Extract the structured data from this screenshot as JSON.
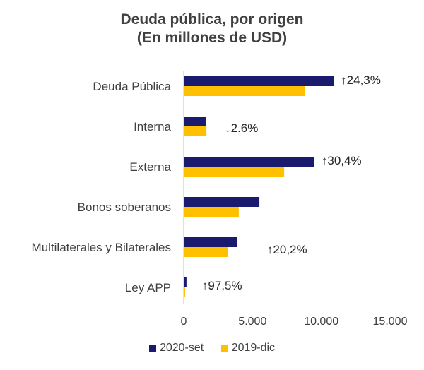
{
  "chart_data": {
    "type": "bar",
    "orientation": "horizontal",
    "title": "Deuda pública, por origen",
    "subtitle": "(En millones  de USD)",
    "categories": [
      "Deuda Pública",
      "Interna",
      "Externa",
      "Bonos soberanos",
      "Multilaterales y Bilaterales",
      "Ley  APP"
    ],
    "series": [
      {
        "name": "2020-set",
        "color": "#1a1a6e",
        "values": [
          10900,
          1600,
          9500,
          5500,
          3900,
          200
        ]
      },
      {
        "name": "2019-dic",
        "color": "#ffc000",
        "values": [
          8800,
          1650,
          7300,
          4000,
          3200,
          100
        ]
      }
    ],
    "annotations": [
      {
        "category": "Deuda Pública",
        "text": "↑24,3%"
      },
      {
        "category": "Interna",
        "text": "↓2.6%"
      },
      {
        "category": "Externa",
        "text": "↑30,4%"
      },
      {
        "category": "Multilaterales y Bilaterales",
        "text": "↑20,2%"
      },
      {
        "category": "Ley  APP",
        "text": "↑97,5%"
      }
    ],
    "xlim": [
      0,
      15000
    ],
    "xticks": [
      0,
      5000,
      10000,
      15000
    ],
    "xtick_labels": [
      "0",
      "5.000",
      "10.000",
      "15.000"
    ],
    "grid": false,
    "legend_position": "bottom"
  }
}
